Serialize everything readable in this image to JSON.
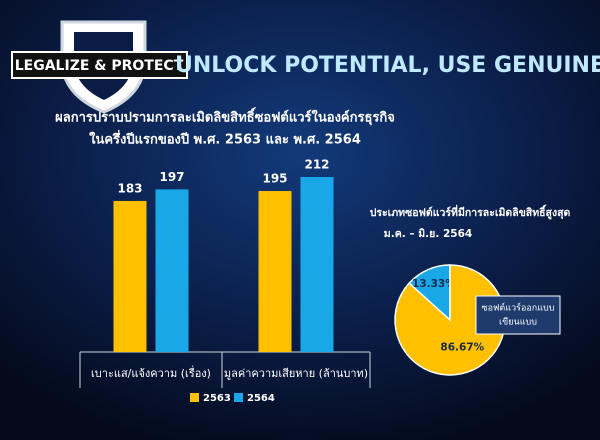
{
  "header": {
    "logo": "LEGALIZE & PROTECT",
    "headline": "UNLOCK POTENTIAL, USE GENUINE"
  },
  "chart_data": [
    {
      "type": "bar",
      "title": [
        "ผลการปราบปรามการละเมิดลิขสิทธิ์ซอฟต์แวร์ในองค์กรธุรกิจ",
        "ในครึ่งปีแรกของปี พ.ศ. 2563 และ พ.ศ. 2564"
      ],
      "categories": [
        "เบาะแส/แจ้งความ (เรื่อง)",
        "มูลค่าความเสียหาย (ล้านบาท)"
      ],
      "series": [
        {
          "name": "2563",
          "color": "#ffc000",
          "values": [
            183,
            195
          ]
        },
        {
          "name": "2564",
          "color": "#1aa7e8",
          "values": [
            197,
            212
          ]
        }
      ]
    },
    {
      "type": "pie",
      "title": [
        "ประเภทซอฟต์แวร์ที่มีการละเมิดลิขสิทธิ์สูงสุด",
        "ม.ค. – มิ.ย. 2564"
      ],
      "values": [
        13.33,
        86.67
      ],
      "value_labels": [
        "13.33%",
        "86.67%"
      ],
      "colors": [
        "#1aa7e8",
        "#ffc000"
      ],
      "annotation": [
        "ซอฟต์แวร์ออกแบบ",
        "เขียนแบบ"
      ]
    }
  ]
}
